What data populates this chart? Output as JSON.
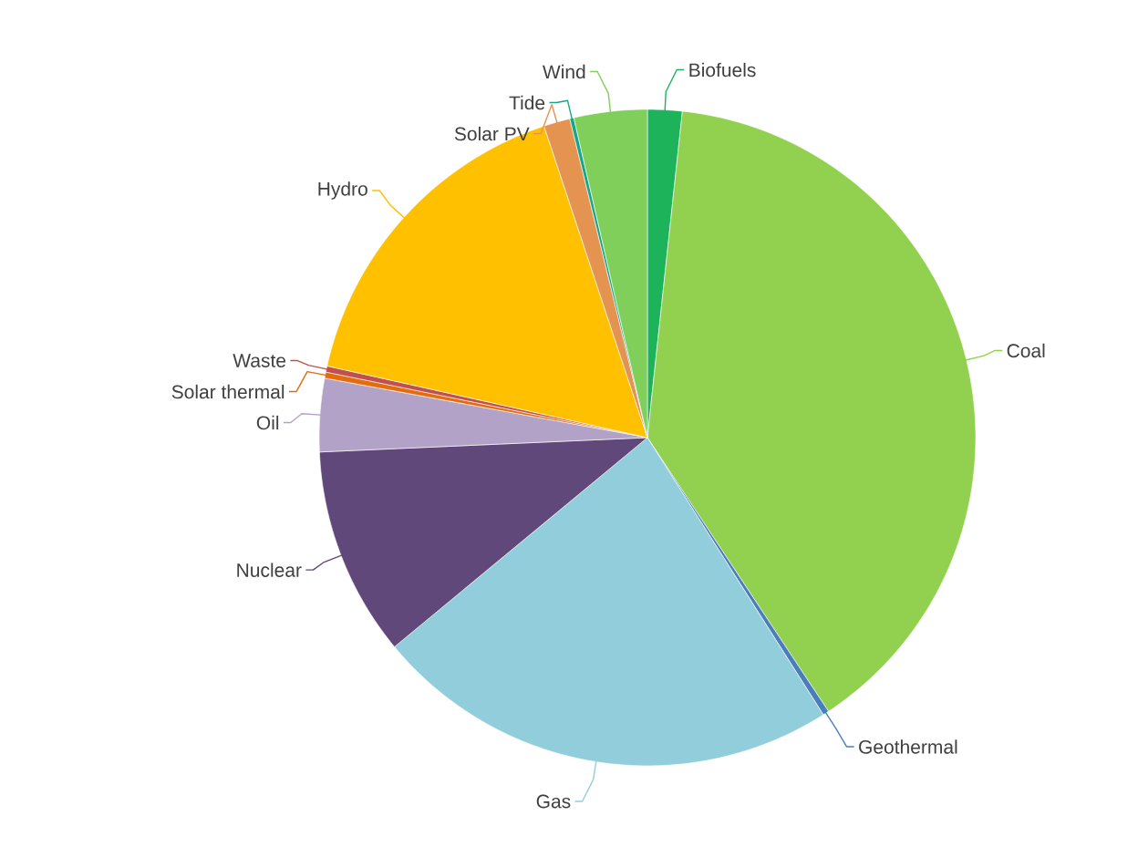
{
  "chart_data": {
    "type": "pie",
    "categories": [
      "Biofuels",
      "Coal",
      "Geothermal",
      "Gas",
      "Nuclear",
      "Oil",
      "Solar thermal",
      "Waste",
      "Hydro",
      "Solar PV",
      "Tide",
      "Wind"
    ],
    "values": [
      1.7,
      39.0,
      0.3,
      23,
      10.3,
      3.6,
      0.3,
      0.3,
      16.4,
      1.3,
      0.2,
      3.6
    ],
    "colors": [
      "#1db35a",
      "#92d050",
      "#4a7ebb",
      "#92cddc",
      "#60497a",
      "#b3a2c7",
      "#e46c0a",
      "#c0504d",
      "#ffc000",
      "#e59351",
      "#17a589",
      "#7fcf5a"
    ]
  }
}
